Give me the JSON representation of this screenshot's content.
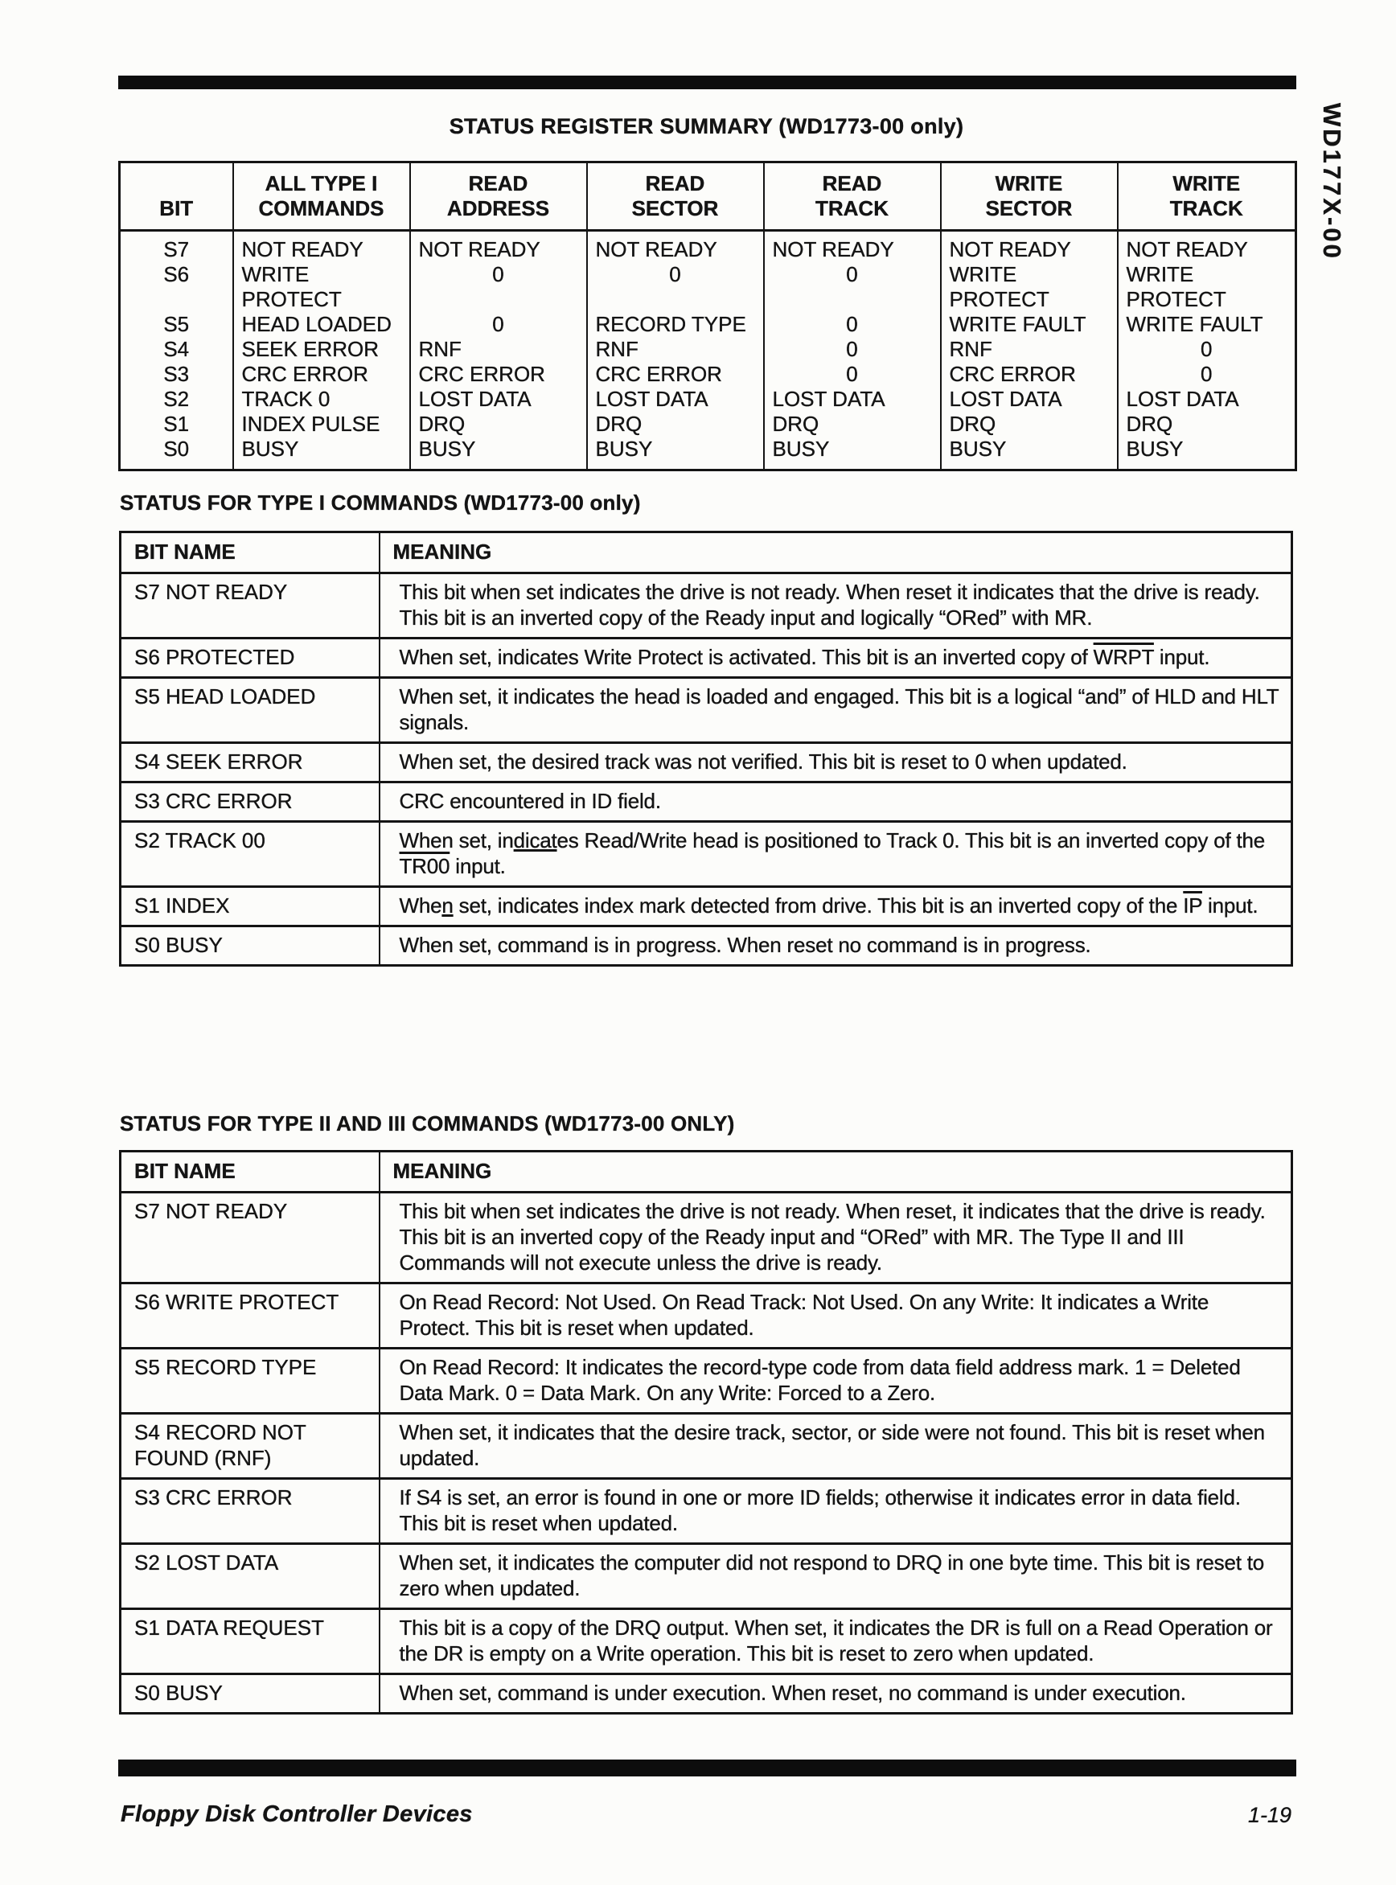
{
  "side_label": "WD177X-00",
  "summary": {
    "title": "STATUS REGISTER SUMMARY (WD1773-00 only)",
    "columns": [
      "BIT",
      "ALL TYPE I\nCOMMANDS",
      "READ\nADDRESS",
      "READ\nSECTOR",
      "READ\nTRACK",
      "WRITE\nSECTOR",
      "WRITE\nTRACK"
    ],
    "rows": [
      [
        "S7",
        "NOT READY",
        "NOT READY",
        "NOT READY",
        "NOT READY",
        "NOT READY",
        "NOT READY"
      ],
      [
        "S6",
        "WRITE",
        "0",
        "0",
        "0",
        "WRITE",
        "WRITE"
      ],
      [
        "",
        "PROTECT",
        "",
        "",
        "",
        "PROTECT",
        "PROTECT"
      ],
      [
        "S5",
        "HEAD LOADED",
        "0",
        "RECORD TYPE",
        "0",
        "WRITE FAULT",
        "WRITE FAULT"
      ],
      [
        "S4",
        "SEEK ERROR",
        "RNF",
        "RNF",
        "0",
        "RNF",
        "0"
      ],
      [
        "S3",
        "CRC ERROR",
        "CRC ERROR",
        "CRC ERROR",
        "0",
        "CRC ERROR",
        "0"
      ],
      [
        "S2",
        "TRACK 0",
        "LOST DATA",
        "LOST DATA",
        "LOST DATA",
        "LOST DATA",
        "LOST DATA"
      ],
      [
        "S1",
        "INDEX PULSE",
        "DRQ",
        "DRQ",
        "DRQ",
        "DRQ",
        "DRQ"
      ],
      [
        "S0",
        "BUSY",
        "BUSY",
        "BUSY",
        "BUSY",
        "BUSY",
        "BUSY"
      ]
    ]
  },
  "type1": {
    "heading": "STATUS FOR TYPE I COMMANDS (WD1773-00 only)",
    "headers": {
      "bit": "BIT NAME",
      "meaning": "MEANING"
    },
    "rows": [
      {
        "bit": "S7 NOT READY",
        "meaning": [
          {
            "t": "This bit when set indicates the drive is not ready. When reset it indicates that the drive is ready. This bit is an inverted copy of the Ready input and logically “ORed” with MR."
          }
        ]
      },
      {
        "bit": "S6 PROTECTED",
        "meaning": [
          {
            "t": "When set, indicates Write Protect is activated. This bit is an inverted copy of "
          },
          {
            "t": "WRPT",
            "o": true
          },
          {
            "t": " input."
          }
        ]
      },
      {
        "bit": "S5 HEAD LOADED",
        "meaning": [
          {
            "t": "When set, it indicates the head is loaded and engaged. This bit is a logical “and” of HLD and HLT signals."
          }
        ]
      },
      {
        "bit": "S4 SEEK ERROR",
        "meaning": [
          {
            "t": "When set, the desired track was not verified. This bit is reset to 0 when updated."
          }
        ]
      },
      {
        "bit": "S3 CRC ERROR",
        "meaning": [
          {
            "t": "CRC encountered in ID field."
          }
        ]
      },
      {
        "bit": "S2 TRACK 00",
        "meaning": [
          {
            "t": "When set, in"
          },
          {
            "t": "dicat",
            "u": true
          },
          {
            "t": "es Read/Write head is positioned to Track 0. This bit is an inverted copy of the "
          },
          {
            "t": "TR00",
            "o": true
          },
          {
            "t": " input."
          }
        ]
      },
      {
        "bit": "S1 INDEX",
        "meaning": [
          {
            "t": "Whe"
          },
          {
            "t": "n",
            "u": true
          },
          {
            "t": " set, indicates index mark detected from drive. This bit is an inverted copy of the "
          },
          {
            "t": "IP",
            "o": true
          },
          {
            "t": " input."
          }
        ]
      },
      {
        "bit": "S0 BUSY",
        "meaning": [
          {
            "t": "When set, command is in progress. When reset no command is in progress."
          }
        ]
      }
    ]
  },
  "type23": {
    "heading": "STATUS FOR TYPE II AND III COMMANDS (WD1773-00 ONLY)",
    "headers": {
      "bit": "BIT NAME",
      "meaning": "MEANING"
    },
    "rows": [
      {
        "bit": "S7 NOT READY",
        "meaning": [
          {
            "t": "This bit when set indicates the drive is not ready. When reset, it indicates that the drive is ready. This bit is an inverted copy of the Ready input and “ORed” with MR. The Type II and III Commands will not execute unless the drive is ready."
          }
        ]
      },
      {
        "bit": "S6 WRITE PROTECT",
        "meaning": [
          {
            "t": "On Read Record: Not Used. On Read Track: Not Used. On any Write: It indicates a Write Protect. This bit is reset when updated."
          }
        ]
      },
      {
        "bit": "S5 RECORD TYPE",
        "meaning": [
          {
            "t": "On Read Record: It indicates the record-type code from data field address mark. 1 = Deleted Data Mark. 0 = Data Mark. On any Write: Forced to a Zero."
          }
        ]
      },
      {
        "bit": "S4 RECORD NOT FOUND (RNF)",
        "meaning": [
          {
            "t": "When set, it indicates that the desire track, sector, or side were not found. This bit is reset when updated."
          }
        ]
      },
      {
        "bit": "S3 CRC ERROR",
        "meaning": [
          {
            "t": "If S4 is set, an error is found in one or more ID fields; otherwise it indicates error in data field. This bit is reset when updated."
          }
        ]
      },
      {
        "bit": "S2 LOST DATA",
        "meaning": [
          {
            "t": "When set, it indicates the computer did not respond to DRQ in one byte time. This bit is reset to zero when updated."
          }
        ]
      },
      {
        "bit": "S1 DATA REQUEST",
        "meaning": [
          {
            "t": "This bit is a copy of the DRQ output. When set, it indicates the DR is full on a Read Operation or the DR is empty on a Write operation. This bit is reset to zero when updated."
          }
        ]
      },
      {
        "bit": "S0 BUSY",
        "meaning": [
          {
            "t": "When set, command is under execution. When reset, no command is under execution."
          }
        ]
      }
    ]
  },
  "footer": {
    "left": "Floppy Disk Controller Devices",
    "right": "1-19"
  }
}
